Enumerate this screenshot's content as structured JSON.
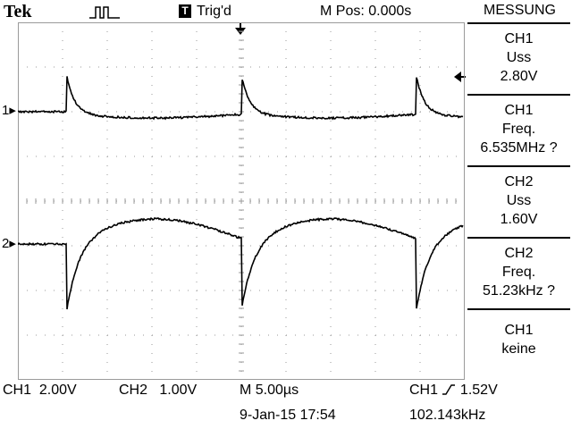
{
  "header": {
    "brand": "Tek",
    "trigger_badge": "T",
    "trigger_status": "Trig'd",
    "position": "M Pos: 0.000s"
  },
  "menu": {
    "title": "MESSUNG",
    "items": [
      {
        "channel": "CH1",
        "measure": "Uss",
        "value": "2.80V"
      },
      {
        "channel": "CH1",
        "measure": "Freq.",
        "value": "6.535MHz ?"
      },
      {
        "channel": "CH2",
        "measure": "Uss",
        "value": "1.60V"
      },
      {
        "channel": "CH2",
        "measure": "Freq.",
        "value": "51.23kHz ?"
      },
      {
        "channel": "CH1",
        "measure": "keine",
        "value": ""
      }
    ]
  },
  "channel_markers": {
    "ch1": "1",
    "ch2": "2"
  },
  "footer": {
    "ch1_label": "CH1",
    "ch1_scale": "2.00V",
    "ch2_label": "CH2",
    "ch2_scale": "1.00V",
    "timebase": "M 5.00µs",
    "trigger_source": "CH1",
    "trigger_level": "1.52V",
    "date": "9-Jan-15 17:54",
    "trigger_freq": "102.143kHz"
  },
  "colors": {
    "trace": "#000000",
    "grid": "#9a9a9a",
    "background": "#ffffff"
  }
}
